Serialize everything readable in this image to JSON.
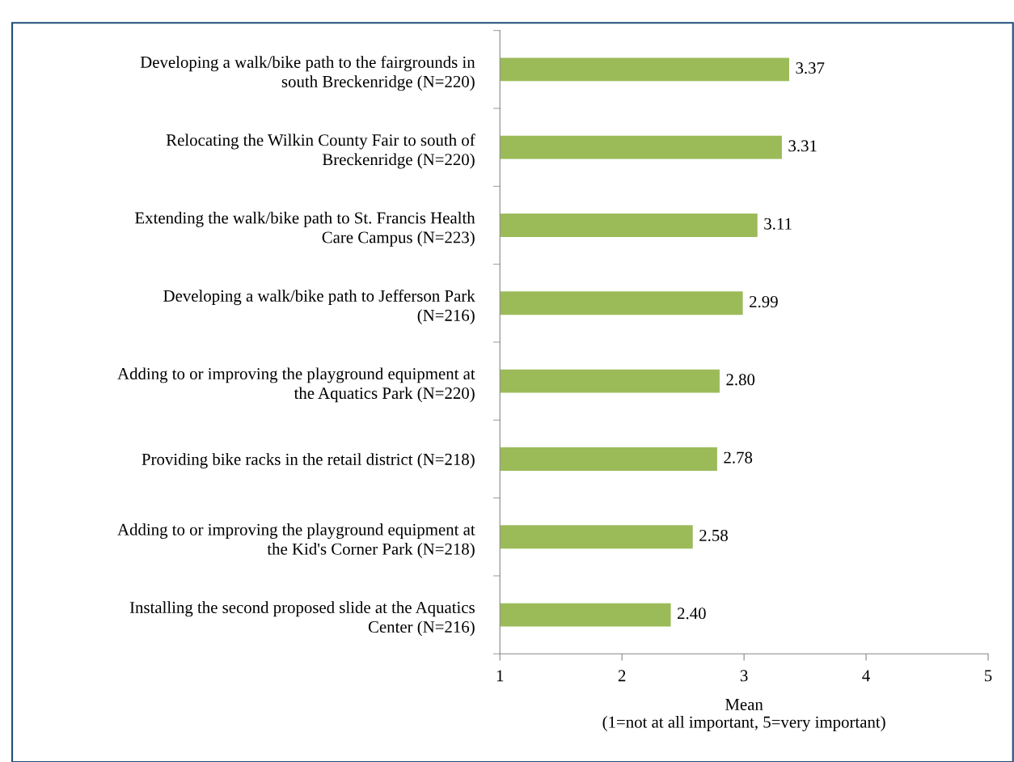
{
  "chart_data": {
    "type": "bar",
    "orientation": "horizontal",
    "xlabel": "Mean\n(1=not at all important, 5=very important)",
    "categories": [
      "Developing a walk/bike path to the fairgrounds in\nsouth Breckenridge (N=220)",
      "Relocating the Wilkin County Fair to south of\nBreckenridge (N=220)",
      "Extending the walk/bike path to St. Francis Health\nCare Campus (N=223)",
      "Developing a walk/bike path to Jefferson Park\n(N=216)",
      "Adding to or improving the playground equipment at\nthe Aquatics Park (N=220)",
      "Providing bike racks in the retail district (N=218)",
      "Adding to or improving the playground equipment at\nthe Kid's Corner Park (N=218)",
      "Installing the second proposed slide at the Aquatics\nCenter (N=216)"
    ],
    "values": [
      3.37,
      3.31,
      3.11,
      2.99,
      2.8,
      2.78,
      2.58,
      2.4
    ],
    "value_labels": [
      "3.37",
      "3.31",
      "3.11",
      "2.99",
      "2.80",
      "2.78",
      "2.58",
      "2.40"
    ],
    "color": "#9bbb59",
    "xlim": [
      1,
      5
    ],
    "xticks": [
      1,
      2,
      3,
      4,
      5
    ],
    "grid": false,
    "legend": false
  }
}
